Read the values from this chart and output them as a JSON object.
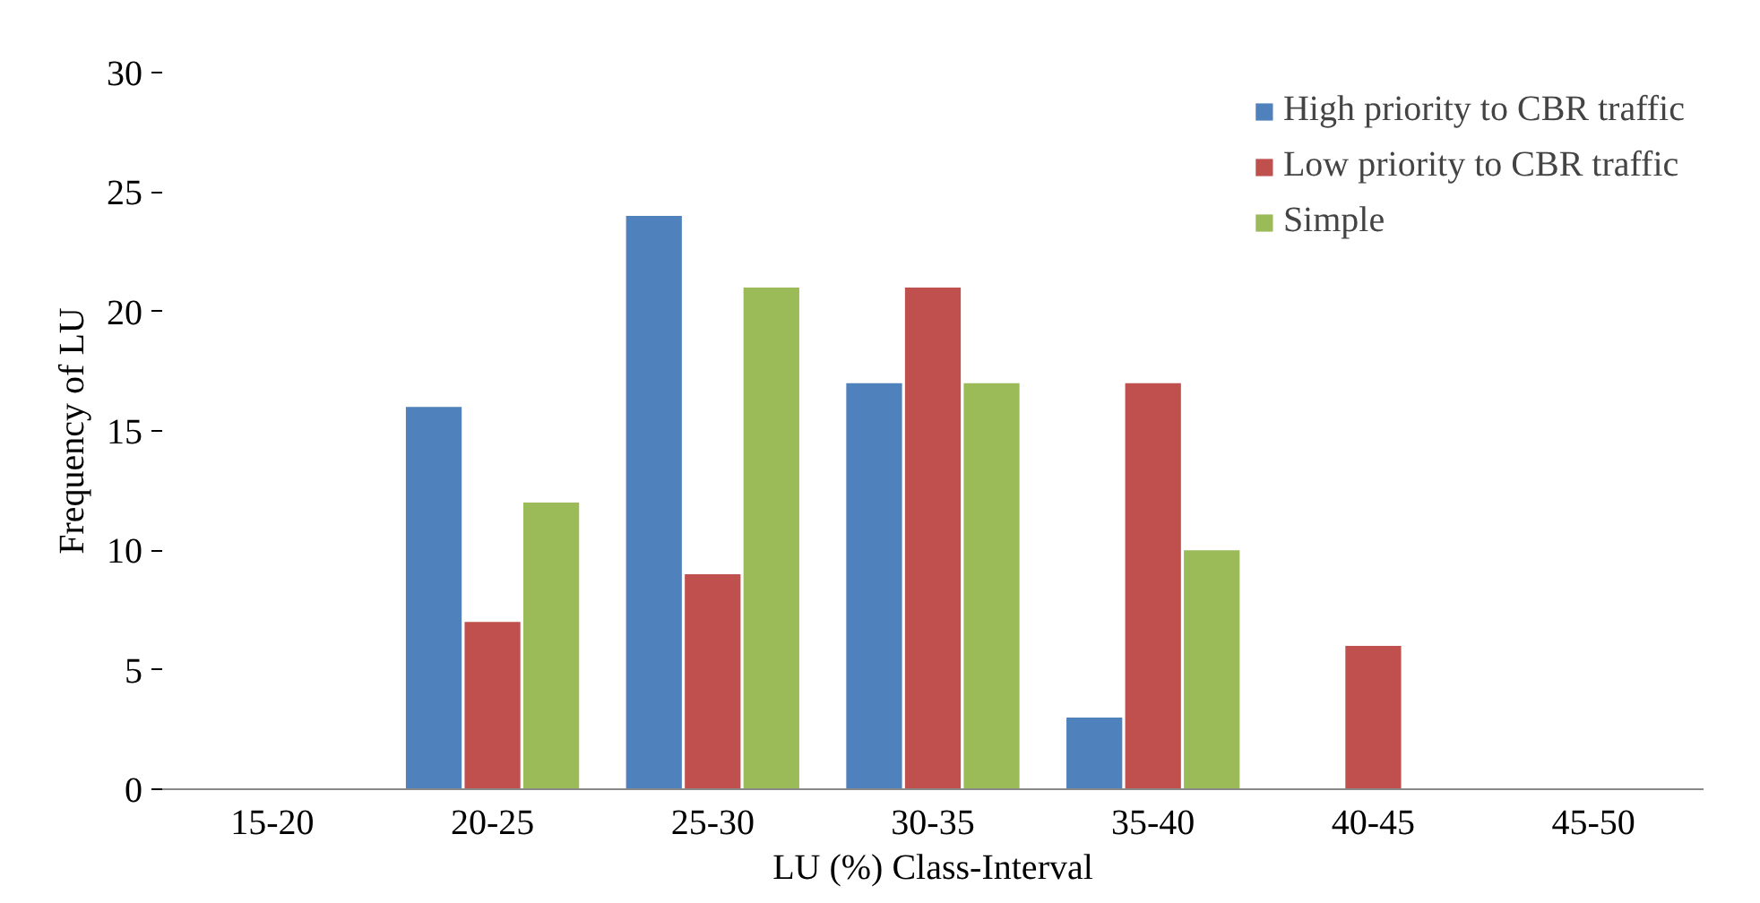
{
  "chart_data": {
    "type": "bar",
    "xlabel": "LU (%) Class-Interval",
    "ylabel": "Frequency of LU",
    "categories": [
      "15-20",
      "20-25",
      "25-30",
      "30-35",
      "35-40",
      "40-45",
      "45-50"
    ],
    "series": [
      {
        "name": "High priority to CBR traffic",
        "color": "#4f81bd",
        "values": [
          0,
          16,
          24,
          17,
          3,
          0,
          0
        ]
      },
      {
        "name": "Low priority to CBR traffic",
        "color": "#c0504d",
        "values": [
          0,
          7,
          9,
          21,
          17,
          6,
          0
        ]
      },
      {
        "name": "Simple",
        "color": "#9bbb59",
        "values": [
          0,
          12,
          21,
          17,
          10,
          0,
          0
        ]
      }
    ],
    "ylim": [
      0,
      30
    ],
    "yticks": [
      0,
      5,
      10,
      15,
      20,
      25,
      30
    ],
    "grid": false,
    "legend": "top right"
  }
}
